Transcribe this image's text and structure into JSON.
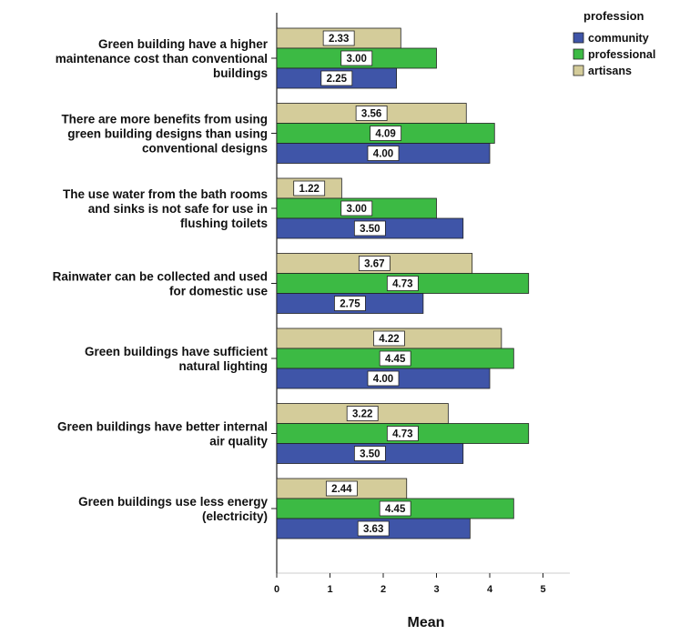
{
  "chart_data": {
    "type": "bar",
    "orientation": "horizontal",
    "categories": [
      [
        "Green building have a higher",
        "maintenance cost than conventional",
        "buildings"
      ],
      [
        "There are more benefits from using",
        "green building designs than using",
        "conventional designs"
      ],
      [
        "The use water from the bath rooms",
        "and sinks is not safe for use in",
        "flushing toilets"
      ],
      [
        "Rainwater can be collected and used",
        "for domestic use"
      ],
      [
        "Green buildings have sufficient",
        "natural lighting"
      ],
      [
        "Green buildings have better internal",
        "air quality"
      ],
      [
        "Green buildings use less energy",
        "(electricity)"
      ]
    ],
    "series": [
      {
        "name": "artisans",
        "color": "#d4cc9a",
        "values": [
          2.33,
          3.56,
          1.22,
          3.67,
          4.22,
          3.22,
          2.44
        ],
        "labels": [
          "2.33",
          "3.56",
          "1.22",
          "3.67",
          "4.22",
          "3.22",
          "2.44"
        ]
      },
      {
        "name": "professional",
        "color": "#3cba44",
        "values": [
          3.0,
          4.09,
          3.0,
          4.73,
          4.45,
          4.73,
          4.45
        ],
        "labels": [
          "3.00",
          "4.09",
          "3.00",
          "4.73",
          "4.45",
          "4.73",
          "4.45"
        ]
      },
      {
        "name": "community",
        "color": "#3f55a8",
        "values": [
          2.25,
          4.0,
          3.5,
          2.75,
          4.0,
          3.5,
          3.63
        ],
        "labels": [
          "2.25",
          "4.00",
          "3.50",
          "2.75",
          "4.00",
          "3.50",
          "3.63"
        ]
      }
    ],
    "xlabel": "Mean",
    "xlim": [
      0,
      5.5
    ],
    "xticks": [
      "0",
      "1",
      "2",
      "3",
      "4",
      "5"
    ],
    "legend": {
      "title": "profession",
      "position": "top-right",
      "order": [
        "community",
        "professional",
        "artisans"
      ]
    },
    "grid": false
  }
}
